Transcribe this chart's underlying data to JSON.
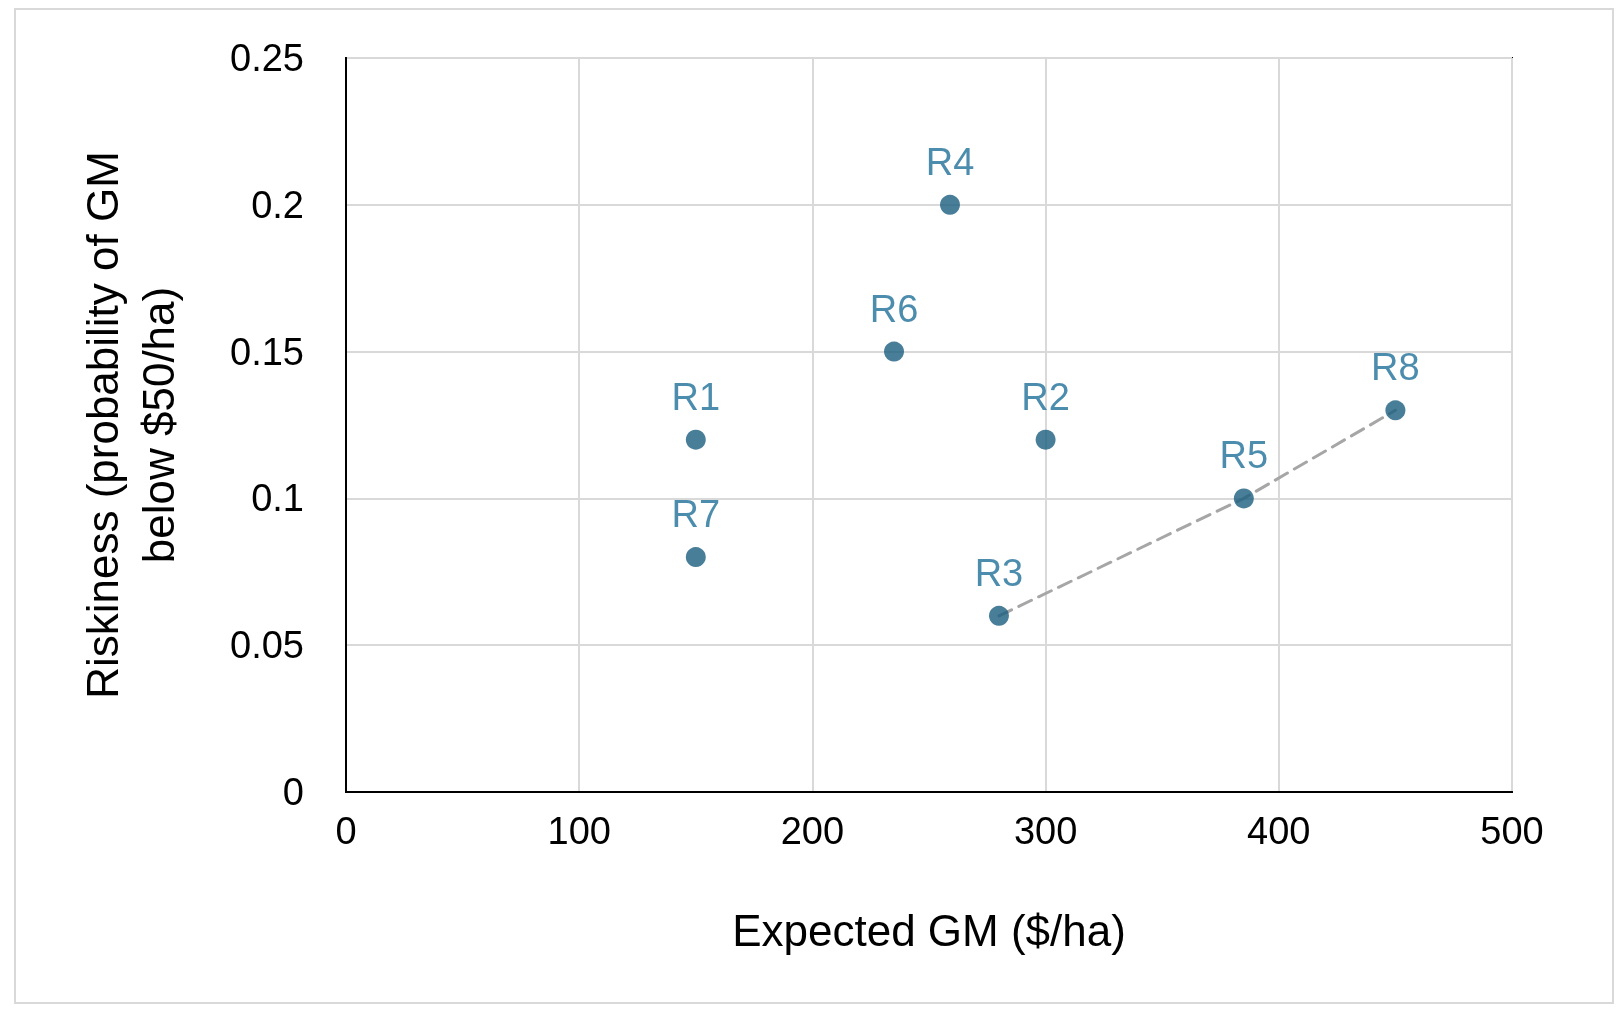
{
  "chart_data": {
    "type": "scatter",
    "xlabel": "Expected GM ($/ha)",
    "ylabel": "Riskiness (probability of GM below $50/ha)",
    "series": [
      {
        "type": "line",
        "color": "#a6a6a6",
        "line_style": "dashed",
        "marker": "none",
        "x": [
          280,
          385,
          450
        ],
        "values": [
          0.06,
          0.1,
          0.13
        ]
      },
      {
        "color": "#1b5e7e",
        "marker": "circle",
        "x": [
          150,
          300,
          280,
          259,
          385,
          235,
          150,
          450
        ],
        "values": [
          0.12,
          0.12,
          0.06,
          0.2,
          0.1,
          0.15,
          0.08,
          0.13
        ],
        "value_labels": [
          "R1",
          "R2",
          "R3",
          "R4",
          "R5",
          "R6",
          "R7",
          "R8"
        ]
      }
    ],
    "xlim": [
      0,
      500
    ],
    "xticks": [
      0,
      100,
      200,
      300,
      400,
      500
    ],
    "ylim": [
      0,
      0.25
    ],
    "yticks": [
      0,
      0.05,
      0.1,
      0.15,
      0.2,
      0.25
    ],
    "grid": true
  }
}
